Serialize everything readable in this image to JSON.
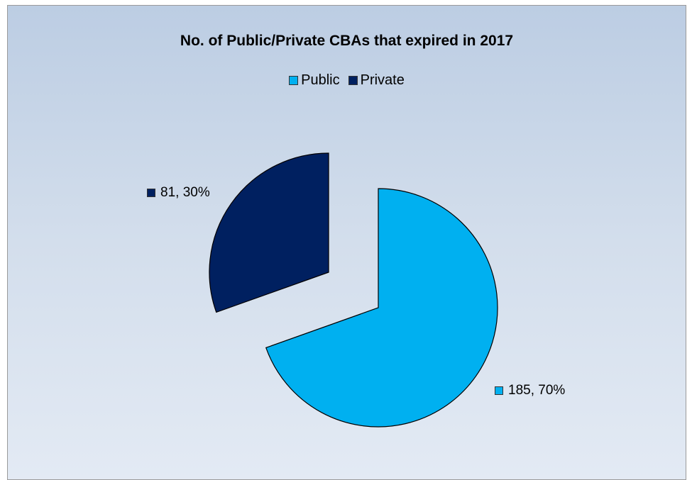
{
  "chart_data": {
    "type": "pie",
    "title": "No. of Public/Private CBAs that expired in 2017",
    "categories": [
      "Public",
      "Private"
    ],
    "values": [
      185,
      81
    ],
    "percentages": [
      "70%",
      "30%"
    ],
    "data_labels": [
      "185, 70%",
      "81, 30%"
    ],
    "colors": [
      "#00b0f0",
      "#002060"
    ],
    "legend_position": "top",
    "exploded": true
  }
}
